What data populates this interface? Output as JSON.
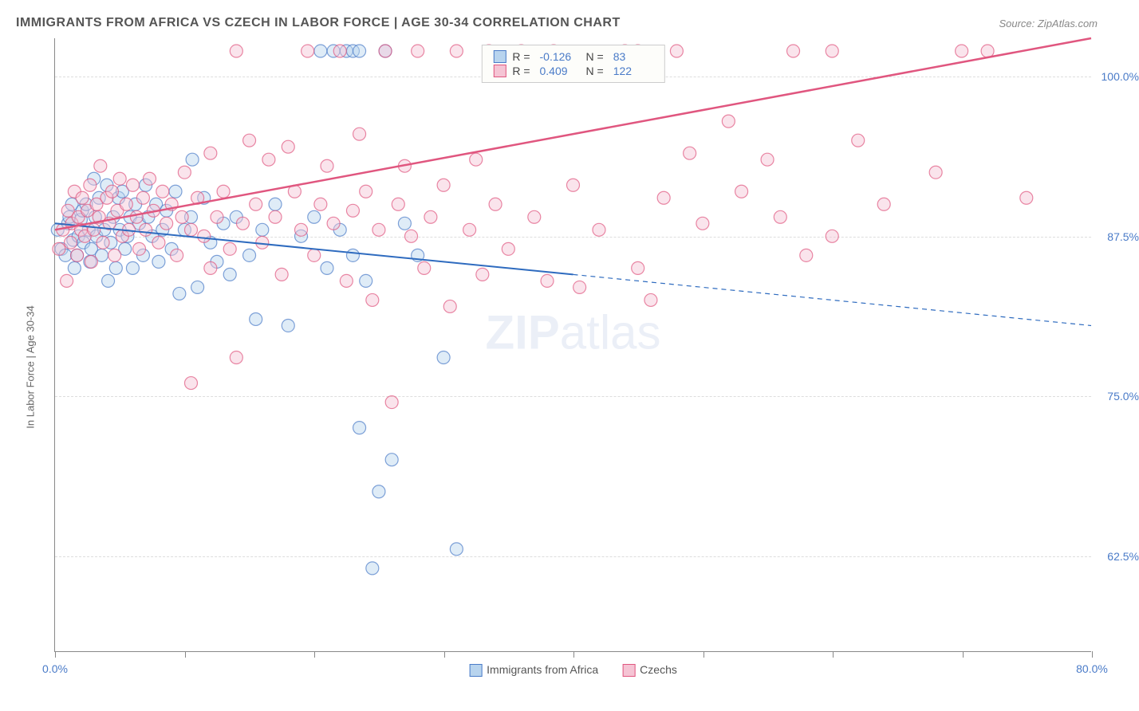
{
  "title": "IMMIGRANTS FROM AFRICA VS CZECH IN LABOR FORCE | AGE 30-34 CORRELATION CHART",
  "source": "Source: ZipAtlas.com",
  "ylabel": "In Labor Force | Age 30-34",
  "watermark_bold": "ZIP",
  "watermark_rest": "atlas",
  "chart": {
    "type": "scatter",
    "xlim": [
      0,
      80
    ],
    "ylim": [
      55,
      103
    ],
    "xtick_positions": [
      0,
      10,
      20,
      30,
      40,
      50,
      60,
      70,
      80
    ],
    "xtick_labels": {
      "0": "0.0%",
      "80": "80.0%"
    },
    "ytick_positions": [
      62.5,
      75.0,
      87.5,
      100.0
    ],
    "ytick_labels": [
      "62.5%",
      "75.0%",
      "87.5%",
      "100.0%"
    ],
    "grid_color": "#dddddd",
    "background_color": "#ffffff",
    "marker_radius": 8,
    "marker_opacity": 0.45,
    "series": [
      {
        "name": "Immigrants from Africa",
        "color": "#6fa3d8",
        "fill": "#b8d4ee",
        "stroke": "#4a7bc8",
        "R": "-0.126",
        "N": "83",
        "trend": {
          "x1": 0,
          "y1": 88.5,
          "x2": 40,
          "y2": 84.5,
          "x2_dash": 80,
          "y2_dash": 80.5,
          "line_color": "#2e6bbf",
          "line_width": 2
        },
        "points": [
          [
            0.2,
            88.0
          ],
          [
            0.5,
            86.5
          ],
          [
            0.8,
            86.0
          ],
          [
            1.0,
            88.5
          ],
          [
            1.1,
            89.0
          ],
          [
            1.3,
            90.0
          ],
          [
            1.4,
            87.2
          ],
          [
            1.5,
            85.0
          ],
          [
            1.7,
            86.0
          ],
          [
            1.8,
            87.5
          ],
          [
            2.0,
            88.8
          ],
          [
            2.1,
            89.5
          ],
          [
            2.2,
            87.0
          ],
          [
            2.4,
            90.0
          ],
          [
            2.6,
            88.0
          ],
          [
            2.7,
            85.5
          ],
          [
            2.8,
            86.5
          ],
          [
            3.0,
            92.0
          ],
          [
            3.1,
            89.0
          ],
          [
            3.2,
            87.5
          ],
          [
            3.4,
            90.5
          ],
          [
            3.6,
            86.0
          ],
          [
            3.8,
            88.0
          ],
          [
            4.0,
            91.5
          ],
          [
            4.1,
            84.0
          ],
          [
            4.3,
            87.0
          ],
          [
            4.5,
            89.0
          ],
          [
            4.7,
            85.0
          ],
          [
            4.9,
            90.5
          ],
          [
            5.0,
            88.0
          ],
          [
            5.2,
            91.0
          ],
          [
            5.4,
            86.5
          ],
          [
            5.6,
            87.5
          ],
          [
            5.8,
            89.0
          ],
          [
            6.0,
            85.0
          ],
          [
            6.2,
            90.0
          ],
          [
            6.5,
            88.5
          ],
          [
            6.8,
            86.0
          ],
          [
            7.0,
            91.5
          ],
          [
            7.2,
            89.0
          ],
          [
            7.5,
            87.5
          ],
          [
            7.8,
            90.0
          ],
          [
            8.0,
            85.5
          ],
          [
            8.3,
            88.0
          ],
          [
            8.6,
            89.5
          ],
          [
            9.0,
            86.5
          ],
          [
            9.3,
            91.0
          ],
          [
            9.6,
            83.0
          ],
          [
            10.0,
            88.0
          ],
          [
            10.5,
            89.0
          ],
          [
            10.6,
            93.5
          ],
          [
            11.0,
            83.5
          ],
          [
            11.5,
            90.5
          ],
          [
            12.0,
            87.0
          ],
          [
            12.5,
            85.5
          ],
          [
            13.0,
            88.5
          ],
          [
            13.5,
            84.5
          ],
          [
            14.0,
            89.0
          ],
          [
            15.0,
            86.0
          ],
          [
            15.5,
            81.0
          ],
          [
            16.0,
            88.0
          ],
          [
            17.0,
            90.0
          ],
          [
            18.0,
            80.5
          ],
          [
            19.0,
            87.5
          ],
          [
            20.0,
            89.0
          ],
          [
            20.5,
            102.0
          ],
          [
            21.0,
            85.0
          ],
          [
            21.5,
            102.0
          ],
          [
            22.0,
            88.0
          ],
          [
            22.5,
            102.0
          ],
          [
            23.0,
            86.0
          ],
          [
            23.0,
            102.0
          ],
          [
            23.5,
            102.0
          ],
          [
            23.5,
            72.5
          ],
          [
            24.0,
            84.0
          ],
          [
            24.5,
            61.5
          ],
          [
            25.0,
            67.5
          ],
          [
            25.5,
            102.0
          ],
          [
            26.0,
            70.0
          ],
          [
            27.0,
            88.5
          ],
          [
            28.0,
            86.0
          ],
          [
            30.0,
            78.0
          ],
          [
            31.0,
            63.0
          ]
        ]
      },
      {
        "name": "Czechs",
        "color": "#e88aa8",
        "fill": "#f5c4d4",
        "stroke": "#e0567f",
        "R": "0.409",
        "N": "122",
        "trend": {
          "x1": 0,
          "y1": 88.0,
          "x2": 80,
          "y2": 103.0,
          "line_color": "#e0567f",
          "line_width": 2.5
        },
        "points": [
          [
            0.3,
            86.5
          ],
          [
            0.6,
            88.0
          ],
          [
            0.9,
            84.0
          ],
          [
            1.0,
            89.5
          ],
          [
            1.2,
            87.0
          ],
          [
            1.3,
            88.5
          ],
          [
            1.5,
            91.0
          ],
          [
            1.7,
            86.0
          ],
          [
            1.8,
            89.0
          ],
          [
            2.0,
            88.0
          ],
          [
            2.1,
            90.5
          ],
          [
            2.3,
            87.5
          ],
          [
            2.5,
            89.5
          ],
          [
            2.7,
            91.5
          ],
          [
            2.8,
            85.5
          ],
          [
            3.0,
            88.0
          ],
          [
            3.2,
            90.0
          ],
          [
            3.4,
            89.0
          ],
          [
            3.5,
            93.0
          ],
          [
            3.7,
            87.0
          ],
          [
            4.0,
            90.5
          ],
          [
            4.2,
            88.5
          ],
          [
            4.4,
            91.0
          ],
          [
            4.6,
            86.0
          ],
          [
            4.8,
            89.5
          ],
          [
            5.0,
            92.0
          ],
          [
            5.2,
            87.5
          ],
          [
            5.5,
            90.0
          ],
          [
            5.7,
            88.0
          ],
          [
            6.0,
            91.5
          ],
          [
            6.3,
            89.0
          ],
          [
            6.5,
            86.5
          ],
          [
            6.8,
            90.5
          ],
          [
            7.0,
            88.0
          ],
          [
            7.3,
            92.0
          ],
          [
            7.6,
            89.5
          ],
          [
            8.0,
            87.0
          ],
          [
            8.3,
            91.0
          ],
          [
            8.6,
            88.5
          ],
          [
            9.0,
            90.0
          ],
          [
            9.4,
            86.0
          ],
          [
            9.8,
            89.0
          ],
          [
            10.0,
            92.5
          ],
          [
            10.5,
            88.0
          ],
          [
            10.5,
            76.0
          ],
          [
            11.0,
            90.5
          ],
          [
            11.5,
            87.5
          ],
          [
            12.0,
            85.0
          ],
          [
            12.0,
            94.0
          ],
          [
            12.5,
            89.0
          ],
          [
            13.0,
            91.0
          ],
          [
            13.5,
            86.5
          ],
          [
            14.0,
            78.0
          ],
          [
            14.0,
            102.0
          ],
          [
            14.5,
            88.5
          ],
          [
            15.0,
            95.0
          ],
          [
            15.5,
            90.0
          ],
          [
            16.0,
            87.0
          ],
          [
            16.5,
            93.5
          ],
          [
            17.0,
            89.0
          ],
          [
            17.5,
            84.5
          ],
          [
            18.0,
            94.5
          ],
          [
            18.5,
            91.0
          ],
          [
            19.0,
            88.0
          ],
          [
            19.5,
            102.0
          ],
          [
            20.0,
            86.0
          ],
          [
            20.5,
            90.0
          ],
          [
            21.0,
            93.0
          ],
          [
            21.5,
            88.5
          ],
          [
            22.0,
            102.0
          ],
          [
            22.5,
            84.0
          ],
          [
            23.0,
            89.5
          ],
          [
            23.5,
            95.5
          ],
          [
            24.0,
            91.0
          ],
          [
            24.5,
            82.5
          ],
          [
            25.0,
            88.0
          ],
          [
            25.5,
            102.0
          ],
          [
            26.0,
            74.5
          ],
          [
            26.5,
            90.0
          ],
          [
            27.0,
            93.0
          ],
          [
            27.5,
            87.5
          ],
          [
            28.0,
            102.0
          ],
          [
            28.5,
            85.0
          ],
          [
            29.0,
            89.0
          ],
          [
            30.0,
            91.5
          ],
          [
            30.5,
            82.0
          ],
          [
            31.0,
            102.0
          ],
          [
            32.0,
            88.0
          ],
          [
            32.5,
            93.5
          ],
          [
            33.0,
            84.5
          ],
          [
            33.5,
            102.0
          ],
          [
            34.0,
            90.0
          ],
          [
            35.0,
            86.5
          ],
          [
            36.0,
            102.0
          ],
          [
            37.0,
            89.0
          ],
          [
            38.0,
            84.0
          ],
          [
            38.5,
            102.0
          ],
          [
            40.0,
            91.5
          ],
          [
            40.5,
            83.5
          ],
          [
            42.0,
            88.0
          ],
          [
            44.0,
            102.0
          ],
          [
            45.0,
            85.0
          ],
          [
            45.0,
            102.0
          ],
          [
            46.0,
            82.5
          ],
          [
            47.0,
            90.5
          ],
          [
            48.0,
            102.0
          ],
          [
            49.0,
            94.0
          ],
          [
            50.0,
            88.5
          ],
          [
            52.0,
            96.5
          ],
          [
            53.0,
            91.0
          ],
          [
            55.0,
            93.5
          ],
          [
            56.0,
            89.0
          ],
          [
            57.0,
            102.0
          ],
          [
            58.0,
            86.0
          ],
          [
            60.0,
            87.5
          ],
          [
            60.0,
            102.0
          ],
          [
            62.0,
            95.0
          ],
          [
            64.0,
            90.0
          ],
          [
            68.0,
            92.5
          ],
          [
            70.0,
            102.0
          ],
          [
            72.0,
            102.0
          ],
          [
            75.0,
            90.5
          ]
        ]
      }
    ]
  },
  "legend_bottom": [
    "Immigrants from Africa",
    "Czechs"
  ]
}
